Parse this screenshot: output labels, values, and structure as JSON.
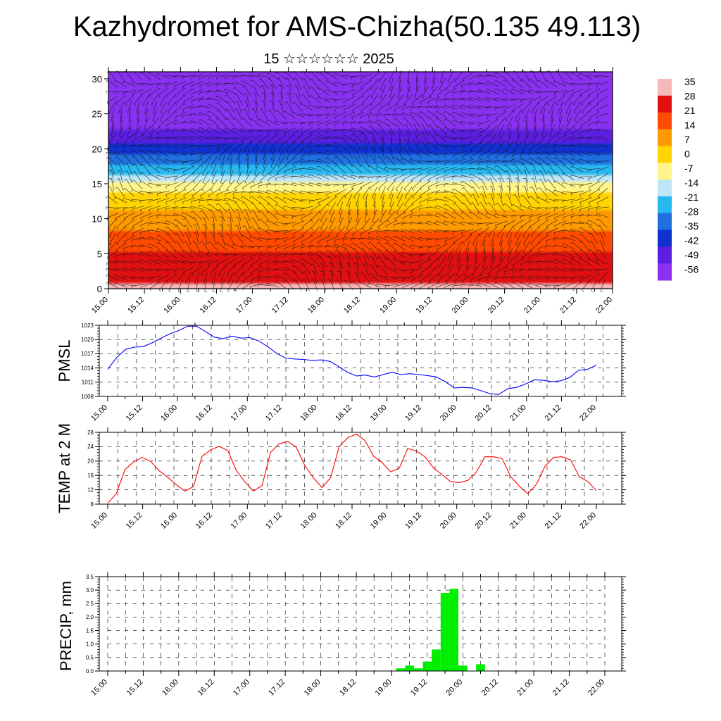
{
  "page": {
    "title": "Kazhydromet for AMS-Chizha(50.135 49.113)",
    "subtitle": "15 ☆☆☆☆☆☆ 2025"
  },
  "chart_data": [
    {
      "type": "heatmap",
      "title": "",
      "xlabel": "",
      "ylabel": "",
      "x_ticks": [
        "15.00",
        "15.12",
        "16.00",
        "16.12",
        "17.00",
        "17.12",
        "18.00",
        "18.12",
        "19.00",
        "19.12",
        "20.00",
        "20.12",
        "21.00",
        "21.12",
        "22.00"
      ],
      "y_ticks": [
        0,
        5,
        10,
        15,
        20,
        25,
        30
      ],
      "ylim": [
        0,
        31
      ],
      "colorbar_labels": [
        35,
        28,
        21,
        14,
        7,
        0,
        -7,
        -14,
        -21,
        -28,
        -35,
        -42,
        -49,
        -56
      ],
      "colorbar_colors": [
        "#f4b8b8",
        "#e01010",
        "#ff4a00",
        "#ff9a00",
        "#ffd400",
        "#fff58a",
        "#bfe6f5",
        "#27b8f0",
        "#1f6fe0",
        "#1030d0",
        "#5a1fe0",
        "#8a30f0"
      ],
      "overlay": "wind barbs",
      "temperature_by_level": [
        {
          "level": 0,
          "value": 28
        },
        {
          "level": 4,
          "value": 22
        },
        {
          "level": 8,
          "value": 12
        },
        {
          "level": 12,
          "value": 2
        },
        {
          "level": 15,
          "value": -10
        },
        {
          "level": 17,
          "value": -24
        },
        {
          "level": 20,
          "value": -42
        },
        {
          "level": 23,
          "value": -54
        },
        {
          "level": 27,
          "value": -58
        },
        {
          "level": 31,
          "value": -56
        }
      ]
    },
    {
      "type": "line",
      "title": "",
      "xlabel": "",
      "ylabel": "PMSL",
      "ylim": [
        1008,
        1023
      ],
      "y_ticks": [
        1008,
        1011,
        1014,
        1017,
        1020,
        1023
      ],
      "x_ticks": [
        "15.00",
        "15.12",
        "16.00",
        "16.12",
        "17.00",
        "17.12",
        "18.00",
        "18.12",
        "19.00",
        "19.12",
        "20.00",
        "20.12",
        "21.00",
        "21.12",
        "22.00"
      ],
      "color": "#0000ff",
      "series": [
        {
          "values": [
            1013.7,
            1016.2,
            1017.9,
            1018.4,
            1018.5,
            1019.3,
            1020.3,
            1021.2,
            1021.9,
            1022.8,
            1022.8,
            1021.7,
            1020.5,
            1020.2,
            1020.7,
            1020.3,
            1020.4,
            1019.7,
            1018.5,
            1017.1,
            1016.1,
            1015.9,
            1015.8,
            1015.6,
            1015.7,
            1015.4,
            1014.3,
            1013.1,
            1012.3,
            1012.5,
            1012.1,
            1012.6,
            1013.1,
            1012.6,
            1012.8,
            1012.6,
            1012.4,
            1012.1,
            1011.1,
            1009.8,
            1009.9,
            1009.8,
            1009.2,
            1008.6,
            1008.4,
            1009.6,
            1009.9,
            1010.6,
            1011.5,
            1011.4,
            1011.1,
            1011.3,
            1012.0,
            1013.5,
            1013.7,
            1014.6
          ]
        }
      ]
    },
    {
      "type": "line",
      "title": "",
      "xlabel": "",
      "ylabel": "TEMP at 2 M",
      "ylim": [
        8,
        28
      ],
      "y_ticks": [
        8,
        12,
        16,
        20,
        24,
        28
      ],
      "x_ticks": [
        "15.00",
        "15.12",
        "16.00",
        "16.12",
        "17.00",
        "17.12",
        "18.00",
        "18.12",
        "19.00",
        "19.12",
        "20.00",
        "20.12",
        "21.00",
        "21.12",
        "22.00"
      ],
      "color": "#ff0000",
      "series": [
        {
          "values": [
            8.3,
            10.9,
            17.6,
            19.7,
            21.0,
            19.9,
            17.3,
            15.5,
            13.4,
            11.6,
            12.9,
            21.3,
            23.1,
            24.1,
            22.9,
            17.4,
            14.2,
            11.6,
            13.2,
            22.4,
            24.8,
            25.5,
            23.8,
            18.7,
            15.3,
            12.6,
            15.4,
            24.0,
            26.5,
            27.5,
            25.7,
            21.4,
            19.6,
            17.0,
            18.0,
            23.5,
            22.8,
            21.2,
            18.1,
            16.2,
            14.3,
            14.0,
            14.6,
            16.9,
            21.2,
            21.2,
            20.7,
            15.7,
            13.0,
            10.9,
            13.5,
            18.5,
            21.0,
            21.2,
            20.3,
            15.7,
            14.3,
            11.8
          ]
        }
      ]
    },
    {
      "type": "bar",
      "title": "",
      "xlabel": "",
      "ylabel": "PRECIP, mm",
      "ylim": [
        0,
        3.5
      ],
      "y_ticks": [
        0.0,
        0.5,
        1.0,
        1.5,
        2.0,
        2.5,
        3.0,
        3.5
      ],
      "x_ticks": [
        "15.00",
        "15.12",
        "16.00",
        "16.12",
        "17.00",
        "17.12",
        "18.00",
        "18.12",
        "19.00",
        "19.12",
        "20.00",
        "20.12",
        "21.00",
        "21.12",
        "22.00"
      ],
      "color": "#00ee00",
      "x": [
        19.125,
        19.25,
        19.375,
        19.5,
        19.625,
        19.75,
        19.875,
        20.0,
        20.125,
        20.25,
        20.375
      ],
      "values": [
        0.1,
        0.2,
        0.1,
        0.35,
        0.8,
        2.9,
        3.05,
        0.2,
        0.0,
        0.25,
        0.0
      ]
    }
  ]
}
